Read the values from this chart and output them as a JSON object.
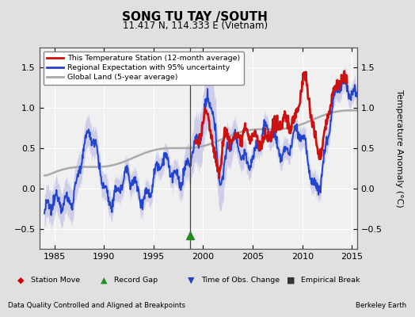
{
  "title": "SONG TU TAY /SOUTH",
  "subtitle": "11.417 N, 114.333 E (Vietnam)",
  "ylabel": "Temperature Anomaly (°C)",
  "xlabel_left": "Data Quality Controlled and Aligned at Breakpoints",
  "xlabel_right": "Berkeley Earth",
  "xlim": [
    1983.5,
    2015.5
  ],
  "ylim": [
    -0.75,
    1.75
  ],
  "yticks": [
    -0.5,
    0.0,
    0.5,
    1.0,
    1.5
  ],
  "xticks": [
    1985,
    1990,
    1995,
    2000,
    2005,
    2010,
    2015
  ],
  "bg_color": "#e0e0e0",
  "plot_bg_color": "#f0f0f0",
  "vertical_line_x": 1998.7,
  "record_gap_x": 1998.7,
  "record_gap_y": -0.63,
  "bottom_legend": [
    {
      "label": "Station Move",
      "color": "#cc0000",
      "marker": "D"
    },
    {
      "label": "Record Gap",
      "color": "#228B22",
      "marker": "^"
    },
    {
      "label": "Time of Obs. Change",
      "color": "#2244cc",
      "marker": "v"
    },
    {
      "label": "Empirical Break",
      "color": "#333333",
      "marker": "s"
    }
  ]
}
